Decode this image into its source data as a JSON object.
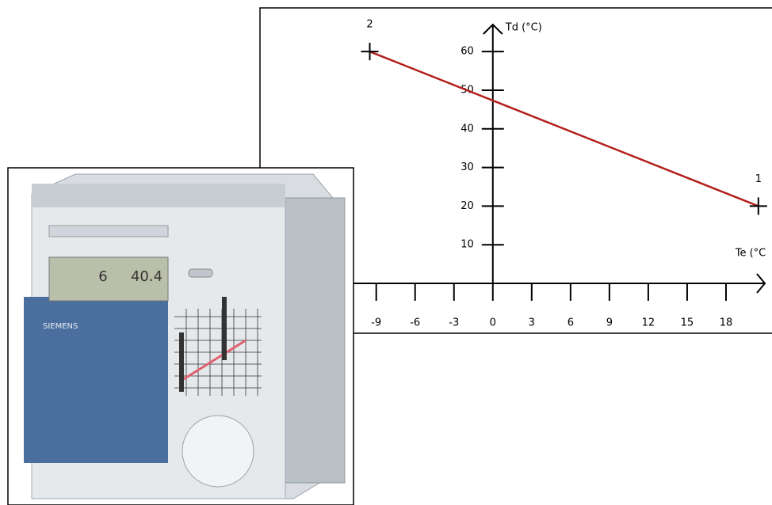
{
  "chart_data": {
    "type": "line",
    "x_label": "Te (°C",
    "y_label": "Td (°C)",
    "x": [
      -9.5,
      20.5
    ],
    "series": [
      {
        "color": "#b3201c",
        "values": [
          60,
          20
        ]
      }
    ],
    "point_labels": [
      "2",
      "1"
    ],
    "xlim": [
      -11,
      21
    ],
    "ylim": [
      0,
      67
    ],
    "xticks": [
      -9,
      -6,
      -3,
      0,
      3,
      6,
      9,
      12,
      15,
      18
    ],
    "yticks": [
      10,
      20,
      30,
      40,
      50,
      60
    ]
  },
  "photo": {
    "brand": "SIEMENS",
    "lcd": [
      "6",
      "40.4"
    ]
  }
}
